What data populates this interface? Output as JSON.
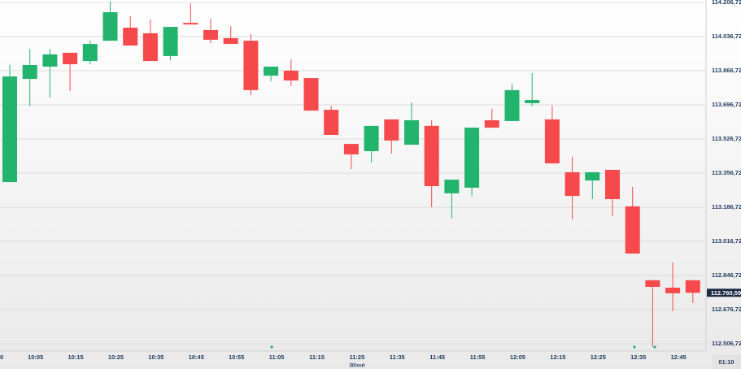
{
  "chart_data": {
    "type": "candlestick",
    "categories": [
      null,
      "10:05",
      null,
      "10:15",
      null,
      "10:25",
      null,
      "10:35",
      null,
      "10:45",
      null,
      "10:55",
      null,
      "11:05",
      null,
      "11:15",
      null,
      "11:25",
      null,
      "11:35",
      null,
      "11:45",
      null,
      "11:55",
      null,
      "12:05",
      null,
      "12:15",
      null,
      "12:25",
      null,
      "12:35",
      null,
      "12:45",
      null
    ],
    "x_edge_label": "0",
    "date_label": "30/out",
    "open": [
      113312,
      113826,
      113887,
      113956,
      113915,
      114016,
      114081,
      114053,
      113940,
      114105,
      114069,
      114029,
      114016,
      113842,
      113867,
      113830,
      113672,
      113502,
      113466,
      113624,
      113498,
      113592,
      113256,
      113284,
      113620,
      113616,
      113705,
      113624,
      113361,
      113320,
      113373,
      113191,
      112823,
      112786,
      112823
    ],
    "close": [
      113838,
      113895,
      113948,
      113899,
      114000,
      114158,
      113992,
      113915,
      114085,
      114097,
      114021,
      114000,
      113770,
      113887,
      113818,
      113668,
      113547,
      113450,
      113592,
      113519,
      113620,
      113292,
      113324,
      113583,
      113583,
      113770,
      113721,
      113405,
      113243,
      113361,
      113227,
      112956,
      112790,
      112758,
      112760.59
    ],
    "high": [
      113895,
      113976,
      113976,
      113956,
      114016,
      114211,
      114138,
      114122,
      114085,
      114203,
      114126,
      114089,
      114049,
      113887,
      113923,
      113830,
      113693,
      113502,
      113592,
      113624,
      113709,
      113620,
      113324,
      113583,
      113677,
      113802,
      113855,
      113693,
      113438,
      113361,
      113373,
      113288,
      112823,
      112912,
      112823
    ],
    "low": [
      113312,
      113689,
      113733,
      113766,
      113899,
      114016,
      113992,
      113915,
      113919,
      114097,
      114004,
      114000,
      113745,
      113814,
      113790,
      113668,
      113547,
      113377,
      113409,
      113454,
      113498,
      113187,
      113130,
      113243,
      113583,
      113616,
      113689,
      113405,
      113126,
      113227,
      113142,
      112956,
      112491,
      112669,
      112709
    ],
    "up_color": "#22b46c",
    "down_color": "#f5494c",
    "ylim": [
      112470.3,
      114218.9
    ],
    "yticks": [
      {
        "value": 114206.72,
        "label": "114.206,72"
      },
      {
        "value": 114036.72,
        "label": "114.036,72"
      },
      {
        "value": 113866.72,
        "label": "113.866,72"
      },
      {
        "value": 113696.72,
        "label": "113.696,72"
      },
      {
        "value": 113526.72,
        "label": "113.526,72"
      },
      {
        "value": 113356.72,
        "label": "113.356,72"
      },
      {
        "value": 113186.72,
        "label": "113.186,72"
      },
      {
        "value": 113016.72,
        "label": "113.016,72"
      },
      {
        "value": 112846.72,
        "label": "112.846,72"
      },
      {
        "value": 112676.72,
        "label": "112.676,72"
      },
      {
        "value": 112506.72,
        "label": "112.506,72"
      }
    ],
    "current_price": 112760.59,
    "current_price_label": "112.760,59",
    "countdown": "01:10",
    "grid": true
  }
}
